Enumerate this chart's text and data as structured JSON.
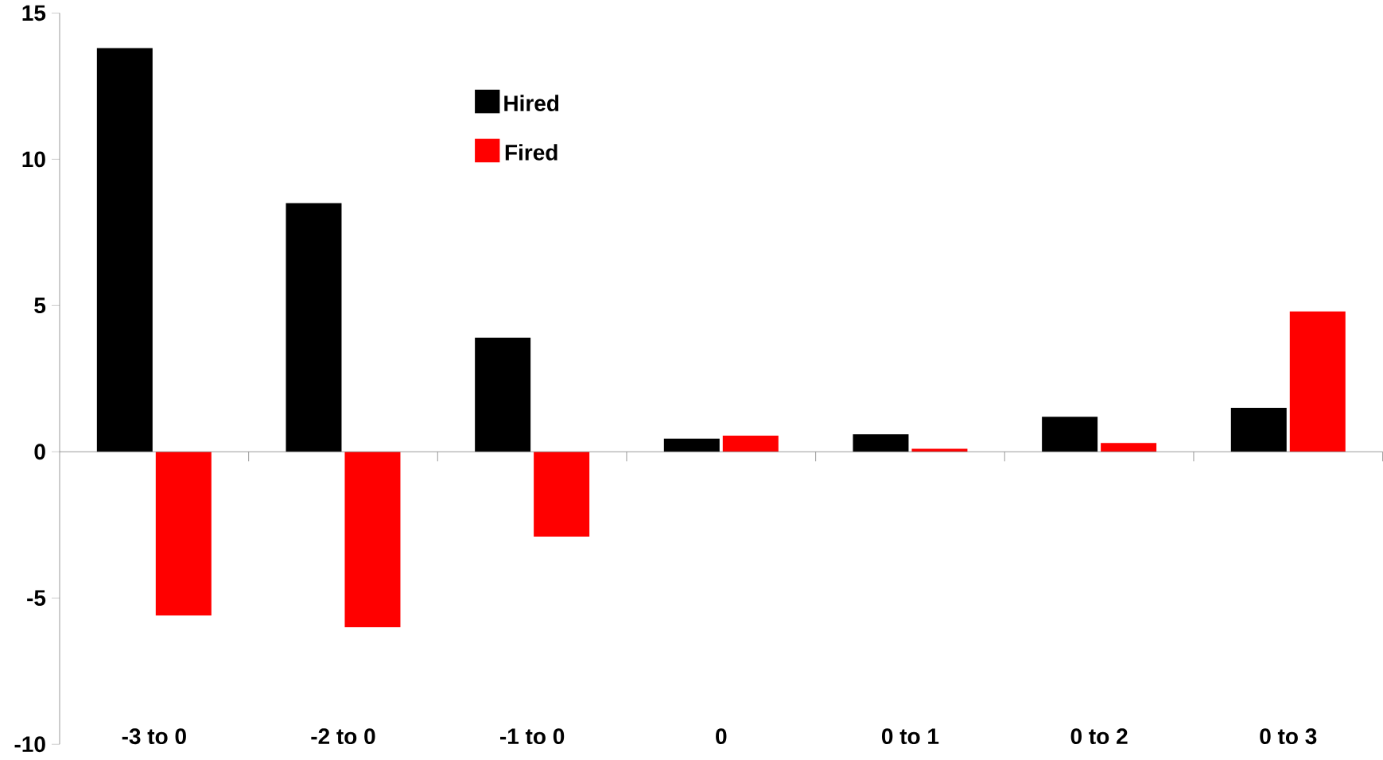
{
  "chart_data": {
    "type": "bar",
    "categories": [
      "-3 to 0",
      "-2 to 0",
      "-1 to 0",
      "0",
      "0 to 1",
      "0 to 2",
      "0 to 3"
    ],
    "series": [
      {
        "name": "Hired",
        "color": "#000000",
        "values": [
          13.8,
          8.5,
          3.9,
          0.45,
          0.6,
          1.2,
          1.5
        ]
      },
      {
        "name": "Fired",
        "color": "#ff0000",
        "values": [
          -5.6,
          -6.0,
          -2.9,
          0.55,
          0.1,
          0.3,
          4.8
        ]
      }
    ],
    "ref_lines": [
      {
        "axis": "y",
        "value": 0,
        "color": "#808080"
      }
    ],
    "ylim": [
      -10,
      15
    ],
    "yticks": [
      -10,
      -5,
      0,
      5,
      10,
      15
    ],
    "grid": false,
    "legend": "top left"
  }
}
